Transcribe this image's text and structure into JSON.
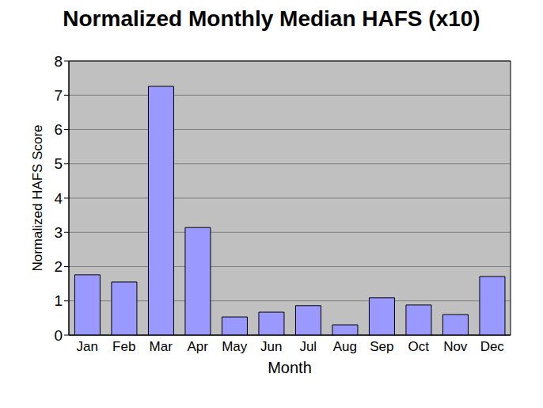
{
  "chart_data": {
    "type": "bar",
    "title": "Normalized Monthly Median HAFS (x10)",
    "x_label": "Month",
    "y_label": "Normalized HAFS Score",
    "categories": [
      "Jan",
      "Feb",
      "Mar",
      "Apr",
      "May",
      "Jun",
      "Jul",
      "Aug",
      "Sep",
      "Oct",
      "Nov",
      "Dec"
    ],
    "values": [
      1.76,
      1.55,
      7.26,
      3.14,
      0.53,
      0.67,
      0.86,
      0.3,
      1.09,
      0.88,
      0.6,
      1.71
    ],
    "color": "#9999ff",
    "ylim": [
      0,
      8
    ],
    "yticks": [
      0,
      1,
      2,
      3,
      4,
      5,
      6,
      7,
      8
    ],
    "grid": true
  }
}
